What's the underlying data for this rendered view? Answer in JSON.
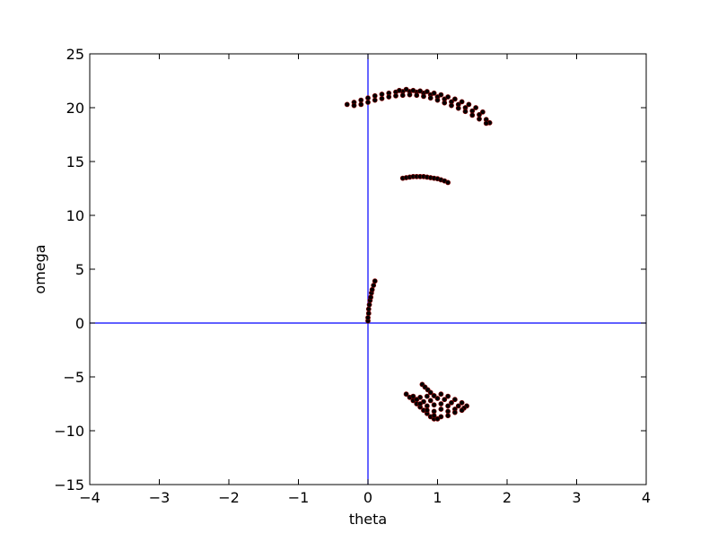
{
  "chart_data": {
    "type": "scatter",
    "xlabel": "theta",
    "ylabel": "omega",
    "xlim": [
      -4,
      4
    ],
    "ylim": [
      -15,
      25
    ],
    "x_ticks": [
      -4,
      -3,
      -2,
      -1,
      0,
      1,
      2,
      3,
      4
    ],
    "y_ticks": [
      -15,
      -10,
      -5,
      0,
      5,
      10,
      15,
      20,
      25
    ],
    "x_tick_labels": [
      "−4",
      "−3",
      "−2",
      "−1",
      "0",
      "1",
      "2",
      "3",
      "4"
    ],
    "y_tick_labels": [
      "−15",
      "−10",
      "−5",
      "0",
      "5",
      "10",
      "15",
      "20",
      "25"
    ],
    "grid": false,
    "reference_lines": {
      "x": 0,
      "y": 0,
      "color": "#0000ff"
    },
    "marker_color": "#000000",
    "marker_edge_color": "#8b0000",
    "series": [
      {
        "points": [
          [
            -0.3,
            20.3
          ],
          [
            -0.2,
            20.5
          ],
          [
            -0.1,
            20.7
          ],
          [
            0.0,
            20.9
          ],
          [
            0.1,
            21.1
          ],
          [
            0.2,
            21.25
          ],
          [
            0.3,
            21.35
          ],
          [
            0.4,
            21.45
          ],
          [
            0.5,
            21.5
          ],
          [
            0.6,
            21.5
          ],
          [
            0.7,
            21.45
          ],
          [
            0.8,
            21.35
          ],
          [
            0.9,
            21.2
          ],
          [
            1.0,
            21.0
          ],
          [
            1.1,
            20.8
          ],
          [
            1.2,
            20.55
          ],
          [
            1.3,
            20.3
          ],
          [
            1.4,
            20.0
          ],
          [
            1.5,
            19.7
          ],
          [
            1.6,
            19.35
          ],
          [
            1.7,
            18.9
          ],
          [
            1.75,
            18.6
          ],
          [
            -0.2,
            20.2
          ],
          [
            -0.1,
            20.3
          ],
          [
            0.0,
            20.5
          ],
          [
            0.1,
            20.7
          ],
          [
            0.2,
            20.85
          ],
          [
            0.3,
            21.0
          ],
          [
            0.4,
            21.1
          ],
          [
            0.5,
            21.15
          ],
          [
            0.6,
            21.2
          ],
          [
            0.7,
            21.15
          ],
          [
            0.8,
            21.05
          ],
          [
            0.9,
            20.9
          ],
          [
            1.0,
            20.7
          ],
          [
            1.1,
            20.45
          ],
          [
            1.2,
            20.2
          ],
          [
            1.3,
            19.95
          ],
          [
            1.4,
            19.65
          ],
          [
            1.5,
            19.3
          ],
          [
            1.6,
            18.95
          ],
          [
            1.7,
            18.55
          ],
          [
            0.45,
            21.6
          ],
          [
            0.55,
            21.7
          ],
          [
            0.65,
            21.6
          ],
          [
            0.75,
            21.55
          ],
          [
            0.85,
            21.5
          ],
          [
            0.95,
            21.35
          ],
          [
            1.05,
            21.2
          ],
          [
            1.15,
            21.0
          ],
          [
            1.25,
            20.8
          ],
          [
            1.35,
            20.55
          ],
          [
            1.45,
            20.3
          ],
          [
            1.55,
            20.0
          ],
          [
            1.65,
            19.6
          ]
        ]
      },
      {
        "points": [
          [
            0.5,
            13.45
          ],
          [
            0.55,
            13.5
          ],
          [
            0.6,
            13.55
          ],
          [
            0.65,
            13.6
          ],
          [
            0.7,
            13.6
          ],
          [
            0.75,
            13.6
          ],
          [
            0.8,
            13.6
          ],
          [
            0.85,
            13.55
          ],
          [
            0.9,
            13.5
          ],
          [
            0.95,
            13.45
          ],
          [
            1.0,
            13.4
          ],
          [
            1.05,
            13.3
          ],
          [
            1.1,
            13.2
          ],
          [
            1.15,
            13.05
          ]
        ]
      },
      {
        "points": [
          [
            0.0,
            0.2
          ],
          [
            0.0,
            0.5
          ],
          [
            0.01,
            0.9
          ],
          [
            0.01,
            1.3
          ],
          [
            0.02,
            1.7
          ],
          [
            0.03,
            2.1
          ],
          [
            0.04,
            2.4
          ],
          [
            0.05,
            2.8
          ],
          [
            0.06,
            3.1
          ],
          [
            0.08,
            3.5
          ],
          [
            0.1,
            3.9
          ]
        ]
      },
      {
        "points": [
          [
            0.55,
            -6.6
          ],
          [
            0.6,
            -6.9
          ],
          [
            0.65,
            -7.2
          ],
          [
            0.7,
            -7.5
          ],
          [
            0.75,
            -7.8
          ],
          [
            0.8,
            -8.1
          ],
          [
            0.85,
            -8.4
          ],
          [
            0.9,
            -8.7
          ],
          [
            0.95,
            -8.9
          ],
          [
            0.78,
            -5.7
          ],
          [
            0.82,
            -5.95
          ],
          [
            0.86,
            -6.2
          ],
          [
            0.9,
            -6.45
          ],
          [
            0.95,
            -6.75
          ],
          [
            0.65,
            -6.8
          ],
          [
            0.75,
            -6.9
          ],
          [
            0.85,
            -6.8
          ],
          [
            0.95,
            -6.75
          ],
          [
            1.05,
            -6.6
          ],
          [
            1.15,
            -6.8
          ],
          [
            1.25,
            -7.1
          ],
          [
            1.35,
            -7.4
          ],
          [
            1.42,
            -7.7
          ],
          [
            0.7,
            -7.1
          ],
          [
            0.8,
            -7.3
          ],
          [
            0.9,
            -7.2
          ],
          [
            1.0,
            -7.0
          ],
          [
            1.1,
            -7.1
          ],
          [
            1.2,
            -7.4
          ],
          [
            1.3,
            -7.7
          ],
          [
            1.38,
            -7.9
          ],
          [
            0.75,
            -7.5
          ],
          [
            0.85,
            -7.7
          ],
          [
            0.95,
            -7.6
          ],
          [
            1.05,
            -7.5
          ],
          [
            1.15,
            -7.7
          ],
          [
            1.25,
            -8.0
          ],
          [
            1.35,
            -8.1
          ],
          [
            0.85,
            -8.1
          ],
          [
            0.95,
            -8.2
          ],
          [
            1.05,
            -8.0
          ],
          [
            1.15,
            -8.2
          ],
          [
            1.25,
            -8.3
          ],
          [
            0.95,
            -8.6
          ],
          [
            1.05,
            -8.7
          ],
          [
            1.15,
            -8.6
          ],
          [
            1.0,
            -8.9
          ]
        ]
      }
    ]
  }
}
